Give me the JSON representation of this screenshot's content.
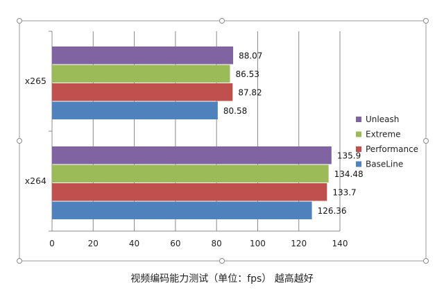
{
  "chart_data": {
    "type": "bar",
    "orientation": "horizontal",
    "categories": [
      "x265",
      "x264"
    ],
    "series": [
      {
        "name": "Unleash",
        "color": "#8064A2",
        "values": [
          88.07,
          135.9
        ],
        "labels": [
          "88.07",
          "135.9"
        ]
      },
      {
        "name": "Extreme",
        "color": "#9BBB59",
        "values": [
          86.53,
          134.48
        ],
        "labels": [
          "86.53",
          "134.48"
        ]
      },
      {
        "name": "Performance",
        "color": "#C0504D",
        "values": [
          87.82,
          133.7
        ],
        "labels": [
          "87.82",
          "133.7"
        ]
      },
      {
        "name": "BaseLine",
        "color": "#4F81BD",
        "values": [
          80.58,
          126.36
        ],
        "labels": [
          "80.58",
          "126.36"
        ]
      }
    ],
    "xlim": [
      0,
      140
    ],
    "ticks": [
      "0",
      "20",
      "40",
      "60",
      "80",
      "100",
      "120",
      "140"
    ],
    "grid": "vertical",
    "legend": "right",
    "title": "",
    "caption": "视频编码能力测试（单位：fps）  越高越好"
  }
}
